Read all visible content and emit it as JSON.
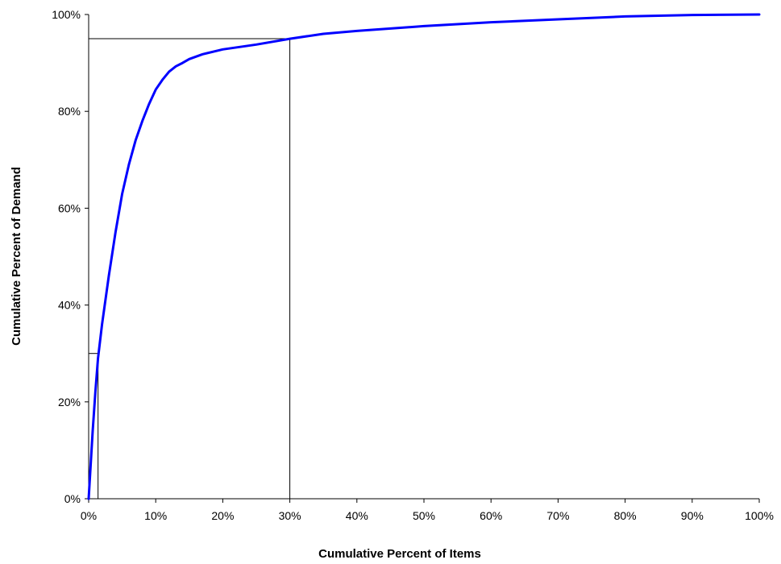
{
  "chart_data": {
    "type": "line",
    "title": "",
    "xlabel": "Cumulative Percent of Items",
    "ylabel": "Cumulative Percent of Demand",
    "xlim": [
      0,
      100
    ],
    "ylim": [
      0,
      100
    ],
    "x_ticks": [
      "0%",
      "10%",
      "20%",
      "30%",
      "40%",
      "50%",
      "60%",
      "70%",
      "80%",
      "90%",
      "100%"
    ],
    "y_ticks": [
      "0%",
      "20%",
      "40%",
      "60%",
      "80%",
      "100%"
    ],
    "grid": false,
    "legend": "none",
    "series": [
      {
        "color": "#0000ff",
        "x": [
          0,
          0.3,
          0.6,
          1,
          1.4,
          2,
          3,
          4,
          5,
          6,
          7,
          8,
          9,
          10,
          11,
          12,
          13,
          14,
          15,
          17,
          20,
          25,
          30,
          35,
          40,
          50,
          60,
          70,
          80,
          90,
          100
        ],
        "y": [
          0,
          7,
          14,
          22,
          29,
          36,
          46,
          55,
          63,
          69,
          74,
          78,
          81.5,
          84.5,
          86.5,
          88.2,
          89.3,
          90,
          90.8,
          91.8,
          92.8,
          93.8,
          95,
          96,
          96.6,
          97.6,
          98.4,
          99,
          99.6,
          99.9,
          100
        ]
      }
    ],
    "reference_lines": [
      {
        "x": 30,
        "y": 95
      },
      {
        "x": 1.4,
        "y": 30
      }
    ]
  }
}
